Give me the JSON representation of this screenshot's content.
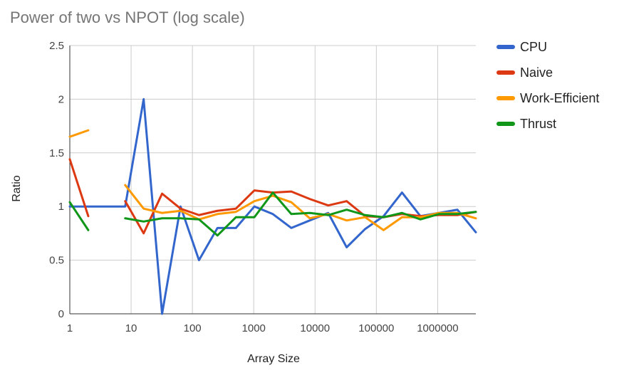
{
  "chart_data": {
    "type": "line",
    "title": "Power of two vs NPOT (log scale)",
    "xlabel": "Array Size",
    "ylabel": "Ratio",
    "x_scale": "log",
    "xlim": [
      1,
      4194304
    ],
    "ylim": [
      0,
      2.5
    ],
    "x_ticks": [
      {
        "value": 1,
        "label": "1"
      },
      {
        "value": 10,
        "label": "10"
      },
      {
        "value": 100,
        "label": "100"
      },
      {
        "value": 1000,
        "label": "1000"
      },
      {
        "value": 10000,
        "label": "10000"
      },
      {
        "value": 100000,
        "label": "100000"
      },
      {
        "value": 1000000,
        "label": "1000000"
      }
    ],
    "y_ticks": [
      {
        "value": 0,
        "label": "0"
      },
      {
        "value": 0.5,
        "label": "0.5"
      },
      {
        "value": 1,
        "label": "1"
      },
      {
        "value": 1.5,
        "label": "1.5"
      },
      {
        "value": 2,
        "label": "2"
      },
      {
        "value": 2.5,
        "label": "2.5"
      }
    ],
    "grid": true,
    "legend_position": "right",
    "x": [
      1,
      2,
      4,
      8,
      16,
      32,
      64,
      128,
      256,
      512,
      1024,
      2048,
      4096,
      8192,
      16384,
      32768,
      65536,
      131072,
      262144,
      524288,
      1048576,
      2097152,
      4194304
    ],
    "series": [
      {
        "name": "CPU",
        "color": "#3366cc",
        "values": [
          1.0,
          1.0,
          1.0,
          1.0,
          2.0,
          0.0,
          1.0,
          0.5,
          0.8,
          0.8,
          1.0,
          0.93,
          0.8,
          0.87,
          0.94,
          0.62,
          0.79,
          0.91,
          1.13,
          0.91,
          0.94,
          0.97,
          0.76
        ]
      },
      {
        "name": "Naive",
        "color": "#dc3912",
        "values": [
          1.44,
          0.91,
          null,
          1.05,
          0.75,
          1.12,
          0.98,
          0.92,
          0.96,
          0.98,
          1.15,
          1.13,
          1.14,
          1.07,
          1.01,
          1.05,
          0.91,
          0.9,
          0.93,
          0.91,
          0.92,
          0.92,
          0.95
        ]
      },
      {
        "name": "Work-Efficient",
        "color": "#ff9900",
        "values": [
          1.65,
          1.71,
          null,
          1.2,
          0.98,
          0.94,
          0.96,
          0.88,
          0.93,
          0.95,
          1.05,
          1.1,
          1.04,
          0.89,
          0.93,
          0.87,
          0.9,
          0.78,
          0.9,
          0.9,
          0.94,
          0.94,
          0.89
        ]
      },
      {
        "name": "Thrust",
        "color": "#109618",
        "values": [
          1.04,
          0.78,
          null,
          0.89,
          0.86,
          0.89,
          0.89,
          0.88,
          0.73,
          0.9,
          0.9,
          1.13,
          0.93,
          0.94,
          0.92,
          0.97,
          0.92,
          0.9,
          0.94,
          0.88,
          0.93,
          0.93,
          0.95
        ]
      }
    ]
  }
}
